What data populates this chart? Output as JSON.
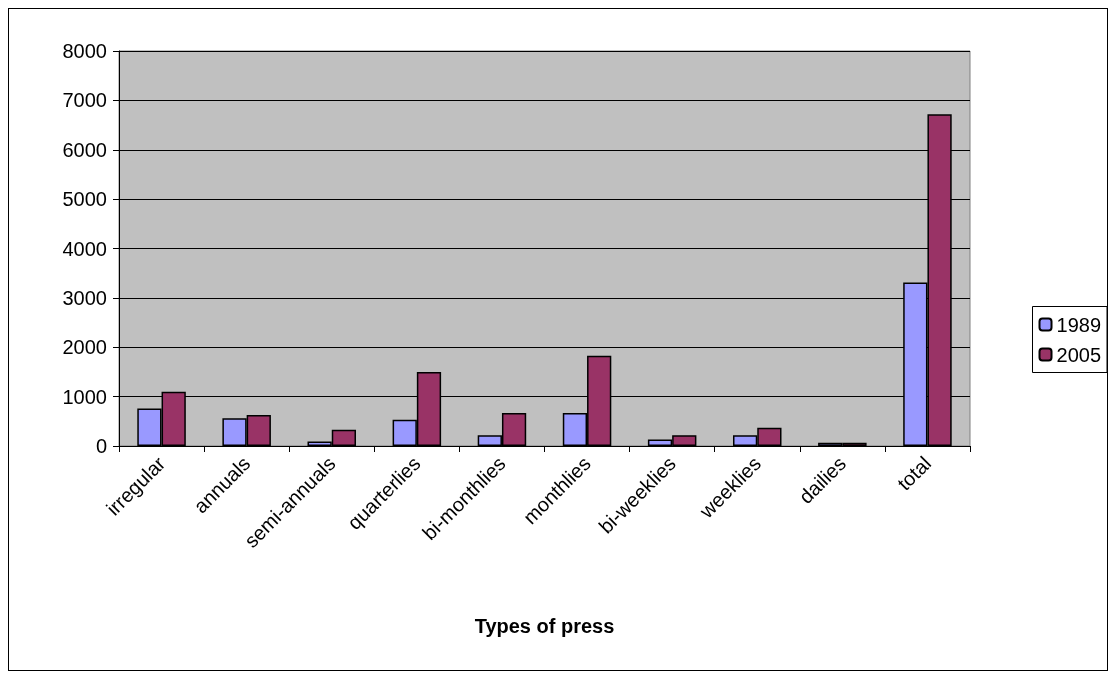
{
  "chart_data": {
    "type": "bar",
    "xlabel": "Types of press",
    "categories": [
      "irregular",
      "annuals",
      "semi-annuals",
      "quarterlies",
      "bi-monthlies",
      "monthlies",
      "bi-weeklies",
      "weeklies",
      "dailies",
      "total"
    ],
    "series": [
      {
        "name": "1989",
        "color": "#9999ff",
        "values": [
          760,
          560,
          90,
          530,
          220,
          670,
          130,
          220,
          65,
          3310
        ]
      },
      {
        "name": "2005",
        "color": "#993366",
        "values": [
          1100,
          630,
          330,
          1500,
          670,
          1830,
          220,
          370,
          65,
          6720
        ]
      }
    ],
    "ylim": [
      0,
      8000
    ],
    "yticks": [
      0,
      1000,
      2000,
      3000,
      4000,
      5000,
      6000,
      7000,
      8000
    ],
    "grid": "y",
    "legend": "right"
  }
}
